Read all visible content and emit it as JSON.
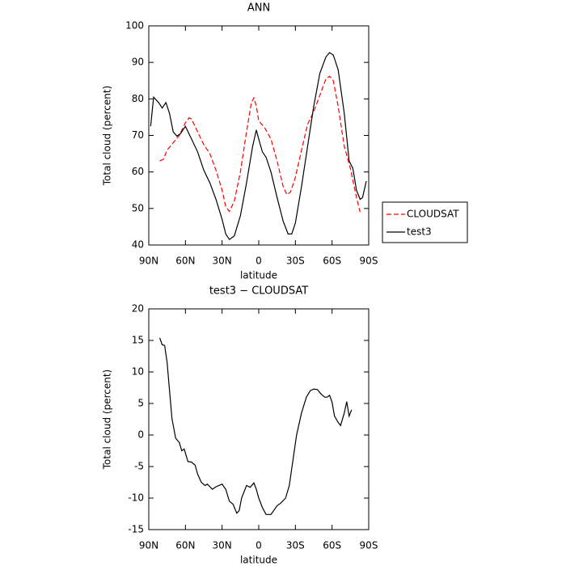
{
  "chart_data": [
    {
      "type": "line",
      "title": "ANN",
      "xlabel": "latitude",
      "ylabel": "Total cloud (percent)",
      "xlim": [
        90,
        -90
      ],
      "xticks": [
        {
          "value": 90,
          "label": "90N"
        },
        {
          "value": 60,
          "label": "60N"
        },
        {
          "value": 30,
          "label": "30N"
        },
        0,
        {
          "value": -30,
          "label": "30S"
        },
        {
          "value": -60,
          "label": "60S"
        },
        {
          "value": -90,
          "label": "90S"
        }
      ],
      "ylim": [
        40,
        100
      ],
      "yticks": [
        40,
        50,
        60,
        70,
        80,
        90,
        100
      ],
      "legend": "right",
      "series": [
        {
          "name": "CLOUDSAT",
          "color": "#ff0000",
          "line_style": "dashed",
          "x": [
            81,
            78,
            75,
            70,
            65,
            60,
            57,
            55,
            50,
            45,
            40,
            35,
            30,
            27,
            24,
            20,
            15,
            10,
            6,
            4,
            2,
            0,
            -5,
            -10,
            -15,
            -20,
            -23,
            -26,
            -30,
            -35,
            -40,
            -45,
            -50,
            -55,
            -58,
            -61,
            -65,
            -70,
            -75,
            -80,
            -83
          ],
          "values": [
            63,
            63.5,
            66,
            68,
            70,
            73.5,
            74.8,
            74.5,
            71,
            67.5,
            65,
            60.5,
            55,
            50.5,
            49.2,
            52,
            60,
            71,
            79,
            80.3,
            78,
            74,
            72,
            69,
            63,
            56,
            53.8,
            54.5,
            58.5,
            66,
            73,
            76.5,
            81,
            85.5,
            86.2,
            85,
            78,
            67,
            61,
            53,
            49
          ]
        },
        {
          "name": "test3",
          "color": "#000000",
          "line_style": "solid",
          "x": [
            88.5,
            86,
            82,
            79,
            76,
            73,
            70,
            67,
            64,
            60,
            55,
            50,
            45,
            40,
            35,
            30,
            27,
            24,
            20,
            15,
            10,
            5,
            2,
            0,
            -3,
            -6,
            -10,
            -15,
            -20,
            -24,
            -27,
            -30,
            -35,
            -40,
            -45,
            -50,
            -55,
            -58,
            -61,
            -65,
            -70,
            -74,
            -77,
            -80,
            -83,
            -85,
            -88
          ],
          "values": [
            72.5,
            80.5,
            79,
            77.5,
            79,
            76,
            71,
            69.8,
            70.5,
            72.5,
            69,
            65.5,
            60.5,
            57,
            52.5,
            47,
            43,
            41.5,
            42.5,
            48,
            57,
            67,
            71.5,
            69,
            65.5,
            64,
            60,
            53,
            46.5,
            43,
            43,
            46,
            56,
            67,
            78,
            87,
            91.5,
            92.7,
            92,
            88,
            76,
            63,
            61,
            55,
            52.5,
            53,
            57.5
          ]
        }
      ]
    },
    {
      "type": "line",
      "title": "test3 − CLOUDSAT",
      "xlabel": "latitude",
      "ylabel": "Total cloud (percent)",
      "xlim": [
        90,
        -90
      ],
      "xticks": [
        {
          "value": 90,
          "label": "90N"
        },
        {
          "value": 60,
          "label": "60N"
        },
        {
          "value": 30,
          "label": "30N"
        },
        0,
        {
          "value": -30,
          "label": "30S"
        },
        {
          "value": -60,
          "label": "60S"
        },
        {
          "value": -90,
          "label": "90S"
        }
      ],
      "ylim": [
        -15,
        20
      ],
      "yticks": [
        -15,
        -10,
        -5,
        0,
        5,
        10,
        15,
        20
      ],
      "series": [
        {
          "color": "#000000",
          "line_style": "solid",
          "x": [
            81,
            79,
            77,
            75,
            73,
            71,
            68,
            65,
            63,
            61,
            58,
            55,
            52,
            50,
            47,
            44,
            42,
            40,
            38,
            35,
            30,
            27,
            24,
            21,
            18,
            16,
            14,
            10,
            7,
            4,
            2,
            0,
            -3,
            -6,
            -10,
            -15,
            -18,
            -22,
            -25,
            -28,
            -31,
            -35,
            -39,
            -42,
            -45,
            -48,
            -51,
            -54,
            -56,
            -58,
            -60,
            -62,
            -65,
            -67,
            -70,
            -72,
            -74,
            -76
          ],
          "values": [
            15.4,
            14.3,
            14.2,
            11.5,
            7,
            2.6,
            -0.5,
            -1.2,
            -2.5,
            -2.2,
            -4.2,
            -4.3,
            -4.8,
            -6.2,
            -7.5,
            -8,
            -7.8,
            -8.2,
            -8.6,
            -8.2,
            -7.8,
            -8.6,
            -10.5,
            -11,
            -12.4,
            -12,
            -10,
            -8,
            -8.3,
            -7.6,
            -8.6,
            -10,
            -11.5,
            -12.6,
            -12.6,
            -11.2,
            -10.8,
            -10,
            -8,
            -4,
            0,
            3.5,
            6,
            7,
            7.3,
            7.2,
            6.5,
            6,
            6,
            6.3,
            5.2,
            3,
            2,
            1.5,
            3.5,
            5.3,
            3,
            4
          ]
        }
      ]
    }
  ]
}
